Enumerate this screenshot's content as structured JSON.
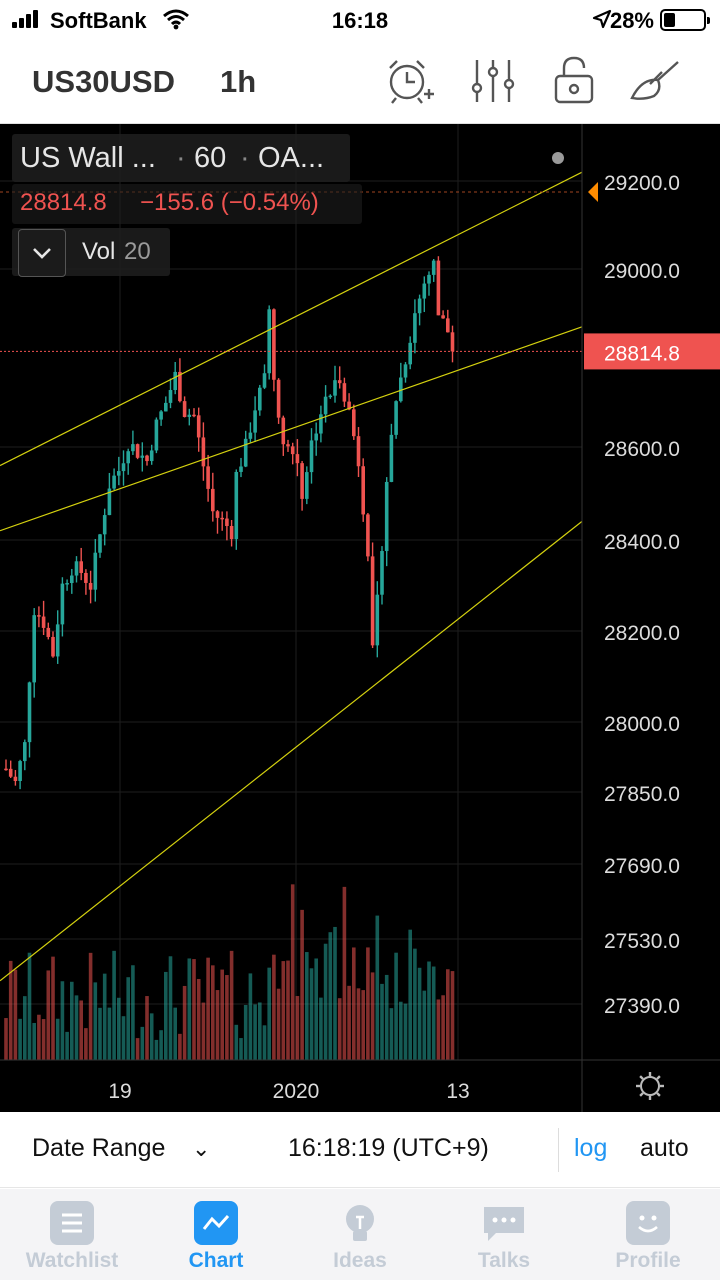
{
  "status": {
    "carrier": "SoftBank",
    "time": "16:18",
    "battery_pct": "28%",
    "battery_level": 0.28
  },
  "toolbar": {
    "symbol": "US30USD",
    "interval": "1h",
    "icons": [
      "alarm-add-icon",
      "indicators-icon",
      "unlock-icon",
      "drawing-tools-icon"
    ]
  },
  "legend": {
    "name": "US Wall ...",
    "separator": "·",
    "interval": "60",
    "exchange": "OA...",
    "last": "28814.8",
    "change": "−155.6 (−0.54%)",
    "volume_label": "Vol",
    "volume_length": "20"
  },
  "colors": {
    "up": "#26a69a",
    "down": "#ef5350",
    "trendline": "#d4d10f",
    "price_tag": "#ef5350",
    "alert_marker": "#ff8c00",
    "accent": "#2196f3"
  },
  "chart_data": {
    "type": "candlestick",
    "symbol": "US30USD",
    "interval": "60",
    "last_price": 28814.8,
    "price_axis_labels": [
      "29200.0",
      "29000.0",
      "28814.8",
      "28600.0",
      "28400.0",
      "28200.0",
      "28000.0",
      "27850.0",
      "27690.0",
      "27530.0",
      "27390.0"
    ],
    "y_ticks": [
      29200,
      29000,
      28600,
      28400,
      28200,
      28000,
      27850,
      27690,
      27530,
      27390
    ],
    "scale": "log",
    "x_axis_labels": [
      "19",
      "2020",
      "13"
    ],
    "price_path": [
      [
        0,
        27900
      ],
      [
        2,
        27870
      ],
      [
        4,
        27950
      ],
      [
        6,
        28250
      ],
      [
        8,
        28220
      ],
      [
        10,
        28150
      ],
      [
        12,
        28300
      ],
      [
        14,
        28340
      ],
      [
        16,
        28330
      ],
      [
        18,
        28300
      ],
      [
        20,
        28410
      ],
      [
        22,
        28520
      ],
      [
        24,
        28550
      ],
      [
        26,
        28610
      ],
      [
        28,
        28590
      ],
      [
        30,
        28570
      ],
      [
        32,
        28650
      ],
      [
        34,
        28700
      ],
      [
        36,
        28760
      ],
      [
        38,
        28680
      ],
      [
        40,
        28670
      ],
      [
        42,
        28560
      ],
      [
        44,
        28460
      ],
      [
        46,
        28440
      ],
      [
        48,
        28420
      ],
      [
        49,
        28540
      ],
      [
        51,
        28600
      ],
      [
        53,
        28690
      ],
      [
        55,
        28750
      ],
      [
        56,
        28910
      ],
      [
        57,
        28770
      ],
      [
        58,
        28650
      ],
      [
        60,
        28600
      ],
      [
        62,
        28570
      ],
      [
        63,
        28500
      ],
      [
        65,
        28610
      ],
      [
        67,
        28680
      ],
      [
        69,
        28720
      ],
      [
        71,
        28760
      ],
      [
        73,
        28680
      ],
      [
        75,
        28570
      ],
      [
        77,
        28380
      ],
      [
        78,
        28150
      ],
      [
        79,
        28260
      ],
      [
        81,
        28530
      ],
      [
        83,
        28710
      ],
      [
        85,
        28800
      ],
      [
        87,
        28900
      ],
      [
        89,
        28970
      ],
      [
        91,
        29010
      ],
      [
        92,
        28900
      ],
      [
        94,
        28860
      ],
      [
        95,
        28814.8
      ]
    ],
    "trendlines": [
      {
        "from": [
          0,
          28560
        ],
        "to": [
          120,
          29220
        ]
      },
      {
        "from": [
          0,
          28420
        ],
        "to": [
          120,
          28870
        ]
      },
      {
        "from": [
          0,
          27440
        ],
        "to": [
          120,
          28440
        ]
      }
    ],
    "volume_indicator": {
      "name": "Vol",
      "length": 20
    }
  },
  "bottom": {
    "date_range": "Date Range",
    "clock": "16:18:19 (UTC+9)",
    "log": "log",
    "auto": "auto"
  },
  "tabs": [
    {
      "label": "Watchlist",
      "icon": "watchlist-icon",
      "active": false
    },
    {
      "label": "Chart",
      "icon": "chart-icon",
      "active": true
    },
    {
      "label": "Ideas",
      "icon": "ideas-icon",
      "active": false
    },
    {
      "label": "Talks",
      "icon": "talks-icon",
      "active": false
    },
    {
      "label": "Profile",
      "icon": "profile-icon",
      "active": false
    }
  ]
}
